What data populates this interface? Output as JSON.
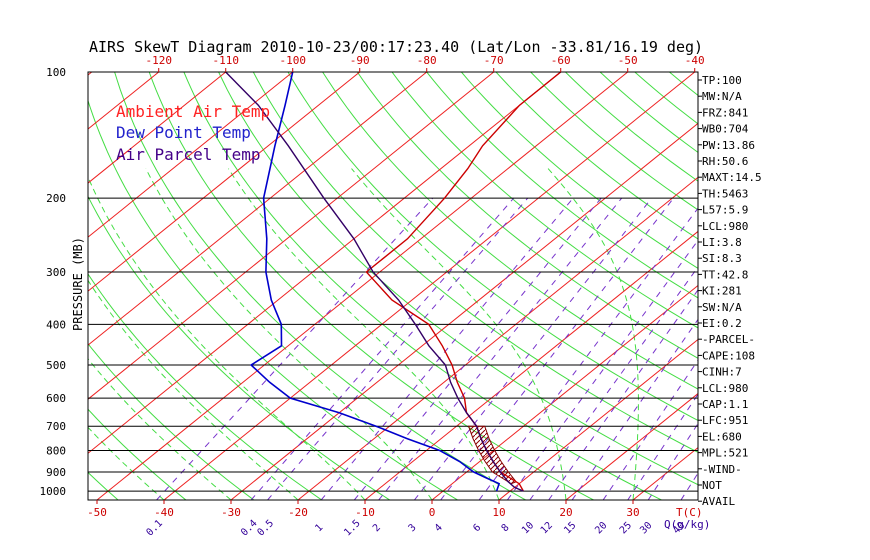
{
  "chart_data": {
    "type": "line",
    "title": "AIRS SkewT Diagram 2010-10-23/00:17:23.40 (Lat/Lon -33.81/16.19 deg)",
    "ylabel": "PRESSURE (MB)",
    "y_scale": "log",
    "ylim": [
      1050,
      100
    ],
    "y_ticks": [
      100,
      200,
      300,
      400,
      500,
      600,
      700,
      800,
      900,
      1000
    ],
    "top_temp_ticks": [
      -120,
      -110,
      -100,
      -90,
      -80,
      -70,
      -60,
      -50,
      -40
    ],
    "bottom_temp_ticks": [
      -50,
      -40,
      -30,
      -20,
      -10,
      0,
      10,
      20,
      30
    ],
    "bottom_temp_unit": "T(C)",
    "mixing_ratio_ticks": [
      "0.1",
      "0.4",
      "0.5",
      "1",
      "1.5",
      "2",
      "3",
      "4",
      "6",
      "8",
      "10",
      "12",
      "15",
      "20",
      "25",
      "30",
      "40"
    ],
    "mixing_ratio_unit": "Q(g/kg)",
    "legend": [
      {
        "name": "Ambient Air Temp",
        "color": "#ff0000"
      },
      {
        "name": "Dew Point Temp",
        "color": "#0000cc"
      },
      {
        "name": "Air Parcel Temp",
        "color": "#330066"
      }
    ],
    "series": [
      {
        "name": "Ambient Air Temp",
        "color": "#cc0000",
        "points": [
          [
            1000,
            12
          ],
          [
            960,
            10
          ],
          [
            900,
            5
          ],
          [
            850,
            2
          ],
          [
            800,
            -1
          ],
          [
            750,
            -4
          ],
          [
            700,
            -7
          ],
          [
            650,
            -11
          ],
          [
            600,
            -14
          ],
          [
            550,
            -18
          ],
          [
            500,
            -22
          ],
          [
            450,
            -27
          ],
          [
            400,
            -33
          ],
          [
            350,
            -43
          ],
          [
            300,
            -52
          ],
          [
            250,
            -52
          ],
          [
            200,
            -54
          ],
          [
            170,
            -56
          ],
          [
            150,
            -58
          ],
          [
            120,
            -60
          ],
          [
            100,
            -60
          ]
        ]
      },
      {
        "name": "Dew Point Temp",
        "color": "#0000cc",
        "points": [
          [
            1000,
            8
          ],
          [
            960,
            7
          ],
          [
            930,
            4
          ],
          [
            900,
            1
          ],
          [
            850,
            -3
          ],
          [
            800,
            -8
          ],
          [
            750,
            -15
          ],
          [
            700,
            -22
          ],
          [
            650,
            -30
          ],
          [
            600,
            -40
          ],
          [
            550,
            -46
          ],
          [
            500,
            -52
          ],
          [
            450,
            -51
          ],
          [
            400,
            -55
          ],
          [
            350,
            -61
          ],
          [
            300,
            -67
          ],
          [
            250,
            -73
          ],
          [
            200,
            -81
          ],
          [
            150,
            -89
          ],
          [
            120,
            -95
          ],
          [
            100,
            -100
          ]
        ]
      },
      {
        "name": "Air Parcel Temp",
        "color": "#330066",
        "points": [
          [
            1000,
            12
          ],
          [
            980,
            10
          ],
          [
            950,
            8
          ],
          [
            900,
            5
          ],
          [
            850,
            2
          ],
          [
            800,
            -1
          ],
          [
            750,
            -4
          ],
          [
            700,
            -7
          ],
          [
            650,
            -11
          ],
          [
            600,
            -15
          ],
          [
            550,
            -19
          ],
          [
            500,
            -23
          ],
          [
            450,
            -29
          ],
          [
            400,
            -35
          ],
          [
            350,
            -42
          ],
          [
            300,
            -51
          ],
          [
            250,
            -60
          ],
          [
            200,
            -72
          ],
          [
            150,
            -87
          ],
          [
            120,
            -99
          ],
          [
            100,
            -110
          ]
        ]
      }
    ],
    "indices": [
      "TP:100",
      "MW:N/A",
      "FRZ:841",
      "WB0:704",
      "PW:13.86",
      "RH:50.6",
      "MAXT:14.5",
      "TH:5463",
      "L57:5.9",
      "LCL:980",
      "LI:3.8",
      "SI:8.3",
      "TT:42.8",
      "KI:281",
      "SW:N/A",
      "EI:0.2",
      "-PARCEL-",
      "CAPE:108",
      "CINH:7",
      "LCL:980",
      "CAP:1.1",
      "LFC:951",
      "EL:680",
      "MPL:521",
      "-WIND-",
      "NOT",
      "AVAIL"
    ]
  }
}
